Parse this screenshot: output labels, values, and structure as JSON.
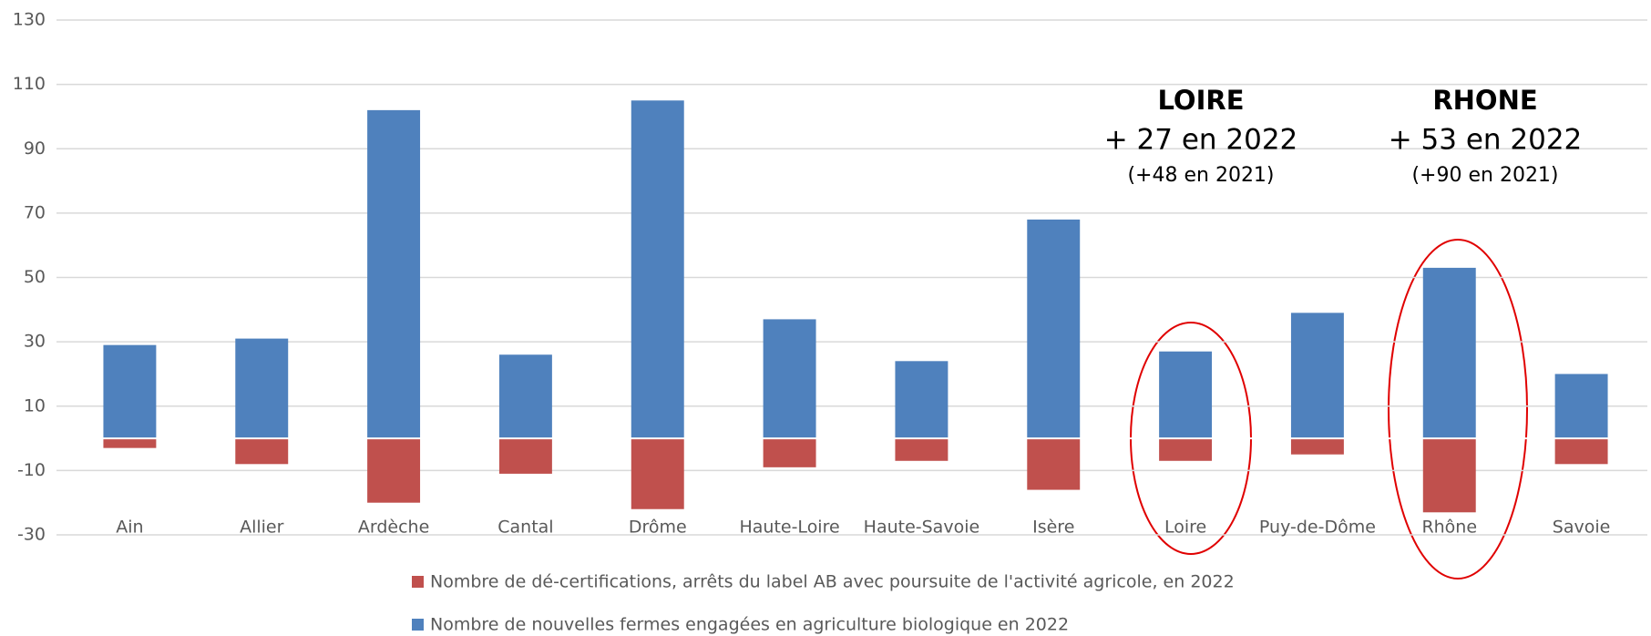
{
  "chart_data": {
    "type": "bar",
    "categories": [
      "Ain",
      "Allier",
      "Ardèche",
      "Cantal",
      "Drôme",
      "Haute-Loire",
      "Haute-Savoie",
      "Isère",
      "Loire",
      "Puy-de-Dôme",
      "Rhône",
      "Savoie"
    ],
    "series": [
      {
        "name": "Nombre de dé-certifications, arrêts du label AB avec poursuite de l'activité agricole, en 2022",
        "color": "#c0504d",
        "values": [
          -3,
          -8,
          -20,
          -11,
          -22,
          -9,
          -7,
          -16,
          -7,
          -5,
          -23,
          -8
        ]
      },
      {
        "name": "Nombre de nouvelles fermes engagées en agriculture biologique en 2022",
        "color": "#4f81bd",
        "values": [
          29,
          31,
          102,
          26,
          105,
          37,
          24,
          68,
          27,
          39,
          53,
          20
        ]
      }
    ],
    "ylim": [
      -30,
      130
    ],
    "yticks": [
      -30,
      -10,
      10,
      30,
      50,
      70,
      90,
      110,
      130
    ],
    "grid": true,
    "annotations": [
      {
        "title": "LOIRE",
        "text": "+ 27 en 2022",
        "note": "(+48 en 2021)"
      },
      {
        "title": "RHONE",
        "text": "+ 53 en 2022",
        "note": "(+90 en 2021)"
      }
    ]
  }
}
